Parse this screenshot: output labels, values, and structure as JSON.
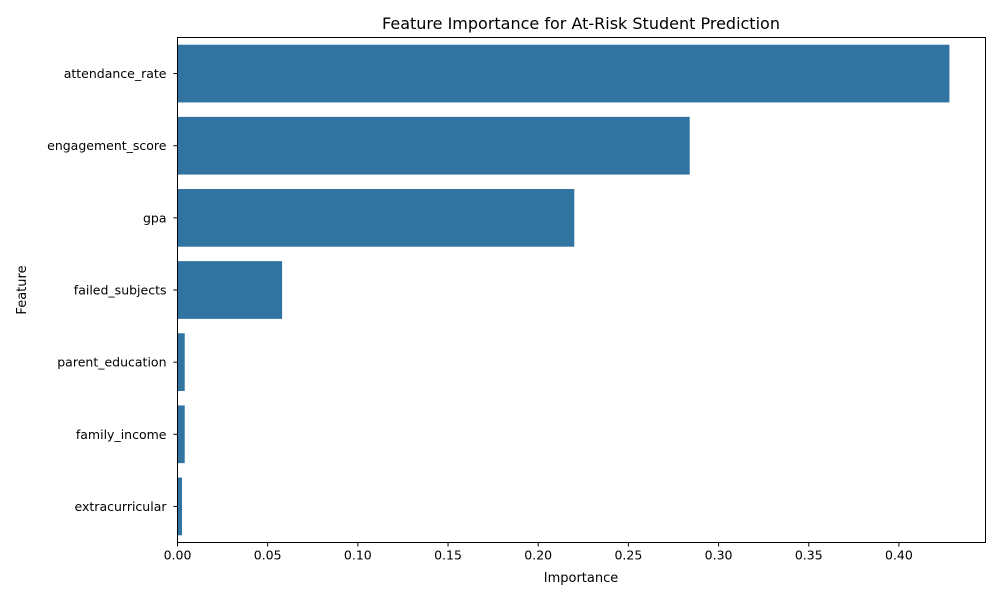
{
  "chart_data": {
    "type": "bar",
    "orientation": "horizontal",
    "title": "Feature Importance for At-Risk Student Prediction",
    "xlabel": "Importance",
    "ylabel": "Feature",
    "categories": [
      "attendance_rate",
      "engagement_score",
      "gpa",
      "failed_subjects",
      "parent_education",
      "family_income",
      "extracurricular"
    ],
    "values": [
      0.428,
      0.284,
      0.22,
      0.058,
      0.004,
      0.004,
      0.0025
    ],
    "xticks": [
      "0.00",
      "0.05",
      "0.10",
      "0.15",
      "0.20",
      "0.25",
      "0.30",
      "0.35",
      "0.40"
    ],
    "xlim": [
      0,
      0.448
    ],
    "grid": false,
    "bar_color": "#3274a1"
  }
}
